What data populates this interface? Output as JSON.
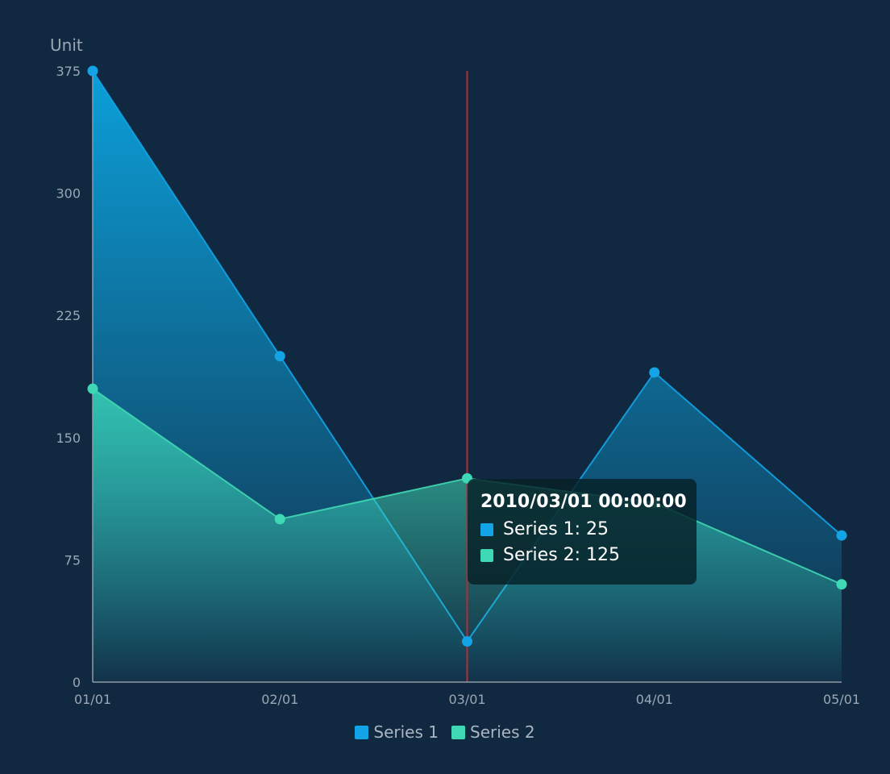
{
  "colors": {
    "background": "#112940",
    "series1": "#12a4e6",
    "series2": "#3fd8b4",
    "crosshair": "#b52b37",
    "axis": "#8e9aa6"
  },
  "chart_data": {
    "type": "area",
    "ylabel": "Unit",
    "xlabel": "",
    "categories": [
      "01/01",
      "02/01",
      "03/01",
      "04/01",
      "05/01"
    ],
    "y_ticks": [
      "0",
      "75",
      "150",
      "225",
      "300",
      "375"
    ],
    "ylim": [
      0,
      375
    ],
    "grid": false,
    "legend_position": "bottom-center",
    "series": [
      {
        "name": "Series 1",
        "values": [
          375,
          200,
          25,
          190,
          90
        ]
      },
      {
        "name": "Series 2",
        "values": [
          180,
          100,
          125,
          110,
          60
        ]
      }
    ]
  },
  "legend": {
    "items": [
      {
        "label": "Series 1"
      },
      {
        "label": "Series 2"
      }
    ]
  },
  "tooltip": {
    "title": "2010/03/01 00:00:00",
    "rows": [
      {
        "text": "Series 1: 25"
      },
      {
        "text": "Series 2: 125"
      }
    ]
  }
}
